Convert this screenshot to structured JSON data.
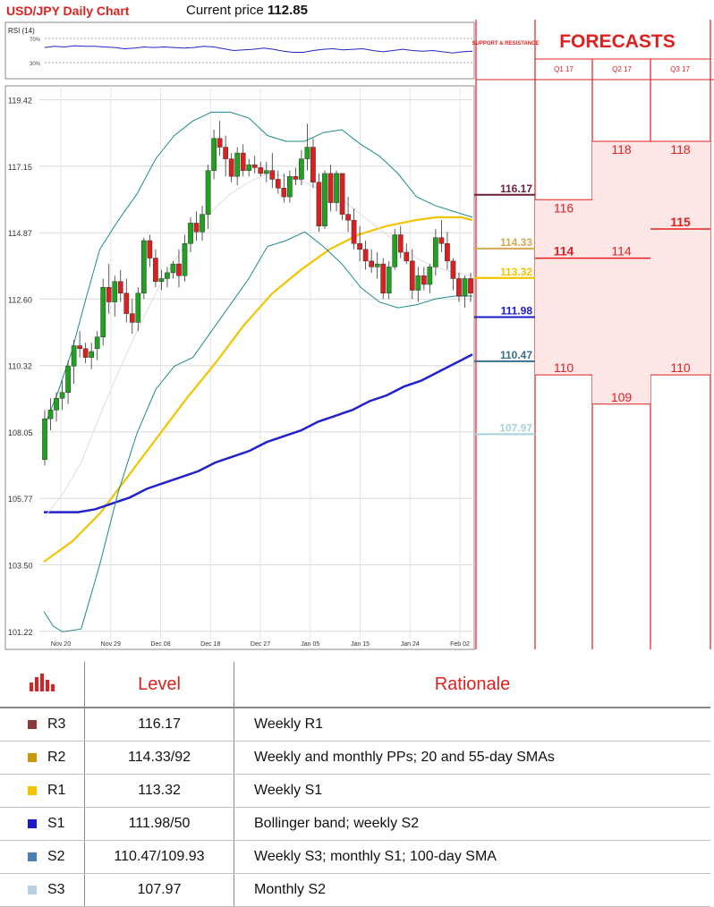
{
  "header": {
    "title": "USD/JPY Daily Chart",
    "price_label": "Current price",
    "price_value": "112.85"
  },
  "rsi_panel": {
    "label": "RSI (14)",
    "level_high": "70%",
    "level_low": "30%"
  },
  "sr_panel": {
    "title": "SUPPORT & RESISTANCE"
  },
  "forecast_panel": {
    "title": "FORECASTS",
    "columns": [
      "Q1 17",
      "Q2 17",
      "Q3 17"
    ]
  },
  "chart_data": {
    "type": "candlestick",
    "title": "USD/JPY Daily Chart",
    "ylim": [
      100.6,
      119.9
    ],
    "y_ticks": [
      "119.42",
      "117.15",
      "114.87",
      "112.60",
      "110.32",
      "108.05",
      "105.77",
      "103.50",
      "101.22"
    ],
    "x_ticks": [
      "Nov 20",
      "Nov 29",
      "Dec 08",
      "Dec 18",
      "Dec 27",
      "Jan 05",
      "Jan 15",
      "Jan 24",
      "Feb 02"
    ],
    "candles": [
      [
        107.1,
        108.8,
        106.9,
        108.5
      ],
      [
        108.5,
        109.2,
        108.1,
        108.8
      ],
      [
        108.8,
        109.4,
        108.4,
        109.2
      ],
      [
        109.2,
        109.8,
        108.8,
        109.4
      ],
      [
        109.4,
        110.5,
        109.0,
        110.3
      ],
      [
        110.3,
        111.2,
        109.7,
        111.0
      ],
      [
        111.0,
        111.5,
        110.6,
        110.9
      ],
      [
        110.9,
        111.1,
        110.4,
        110.6
      ],
      [
        110.6,
        111.1,
        110.2,
        110.8
      ],
      [
        110.9,
        111.5,
        110.5,
        111.3
      ],
      [
        111.3,
        113.3,
        111.0,
        113.0
      ],
      [
        113.0,
        113.8,
        112.1,
        112.5
      ],
      [
        112.5,
        113.4,
        112.0,
        113.2
      ],
      [
        113.2,
        113.6,
        112.5,
        112.8
      ],
      [
        112.8,
        113.3,
        111.8,
        112.1
      ],
      [
        112.1,
        112.6,
        111.4,
        111.8
      ],
      [
        111.8,
        113.0,
        111.5,
        112.8
      ],
      [
        112.8,
        114.7,
        112.6,
        114.6
      ],
      [
        114.6,
        114.8,
        113.7,
        114.0
      ],
      [
        114.0,
        114.3,
        113.0,
        113.2
      ],
      [
        113.2,
        113.6,
        112.9,
        113.3
      ],
      [
        113.3,
        113.7,
        113.0,
        113.5
      ],
      [
        113.5,
        113.9,
        113.3,
        113.8
      ],
      [
        113.8,
        114.3,
        113.0,
        113.4
      ],
      [
        113.4,
        114.8,
        113.2,
        114.5
      ],
      [
        114.5,
        115.4,
        114.2,
        115.2
      ],
      [
        115.2,
        115.6,
        114.6,
        114.9
      ],
      [
        114.9,
        115.8,
        114.6,
        115.5
      ],
      [
        115.5,
        117.2,
        115.0,
        117.0
      ],
      [
        117.0,
        118.4,
        116.7,
        118.1
      ],
      [
        118.1,
        118.7,
        117.5,
        117.8
      ],
      [
        117.8,
        118.2,
        116.8,
        117.4
      ],
      [
        117.4,
        117.6,
        116.6,
        116.8
      ],
      [
        116.8,
        117.8,
        116.5,
        117.6
      ],
      [
        117.6,
        117.9,
        116.8,
        117.0
      ],
      [
        117.0,
        117.4,
        116.8,
        117.2
      ],
      [
        117.2,
        117.5,
        116.9,
        117.1
      ],
      [
        117.1,
        117.3,
        116.8,
        116.9
      ],
      [
        116.9,
        117.3,
        116.6,
        117.0
      ],
      [
        117.0,
        117.6,
        116.4,
        116.7
      ],
      [
        116.7,
        117.0,
        116.2,
        116.4
      ],
      [
        116.4,
        116.9,
        115.9,
        116.1
      ],
      [
        116.1,
        117.0,
        115.9,
        116.8
      ],
      [
        116.8,
        117.1,
        116.5,
        116.7
      ],
      [
        116.7,
        117.7,
        116.5,
        117.4
      ],
      [
        117.4,
        118.6,
        117.0,
        117.8
      ],
      [
        117.8,
        118.1,
        116.4,
        116.6
      ],
      [
        116.6,
        116.9,
        114.9,
        115.1
      ],
      [
        115.1,
        117.0,
        115.0,
        116.9
      ],
      [
        116.9,
        117.2,
        115.6,
        115.9
      ],
      [
        115.9,
        117.0,
        115.6,
        116.9
      ],
      [
        116.9,
        116.9,
        115.3,
        115.5
      ],
      [
        115.5,
        116.1,
        114.9,
        115.3
      ],
      [
        115.3,
        115.7,
        114.3,
        114.5
      ],
      [
        114.5,
        115.1,
        113.9,
        114.3
      ],
      [
        114.3,
        114.6,
        113.6,
        113.9
      ],
      [
        113.9,
        114.3,
        113.5,
        113.7
      ],
      [
        113.7,
        114.2,
        113.3,
        113.8
      ],
      [
        113.8,
        114.0,
        112.6,
        112.8
      ],
      [
        112.8,
        113.9,
        112.6,
        113.7
      ],
      [
        113.7,
        115.0,
        113.6,
        114.8
      ],
      [
        114.8,
        115.1,
        114.0,
        114.2
      ],
      [
        114.2,
        114.5,
        113.8,
        113.9
      ],
      [
        113.9,
        114.3,
        112.6,
        112.9
      ],
      [
        112.9,
        113.7,
        112.5,
        113.4
      ],
      [
        113.4,
        113.7,
        112.9,
        113.1
      ],
      [
        113.1,
        113.8,
        112.8,
        113.7
      ],
      [
        113.7,
        115.0,
        113.4,
        114.7
      ],
      [
        114.7,
        115.3,
        114.2,
        114.5
      ],
      [
        114.5,
        114.9,
        113.6,
        113.9
      ],
      [
        113.9,
        114.0,
        112.9,
        113.3
      ],
      [
        113.3,
        113.5,
        112.5,
        112.7
      ],
      [
        112.7,
        113.4,
        112.3,
        113.3
      ],
      [
        113.3,
        113.5,
        112.5,
        112.8
      ]
    ],
    "series": [
      {
        "name": "",
        "color": "#f2c400",
        "values": [
          [
            0,
            103.6
          ],
          [
            8,
            104.3
          ],
          [
            16,
            105.3
          ],
          [
            24,
            106.6
          ],
          [
            32,
            107.9
          ],
          [
            40,
            109.2
          ],
          [
            48,
            110.4
          ],
          [
            56,
            111.7
          ],
          [
            64,
            112.8
          ],
          [
            72,
            113.6
          ],
          [
            80,
            114.3
          ],
          [
            88,
            114.8
          ],
          [
            96,
            115.1
          ],
          [
            104,
            115.3
          ],
          [
            110,
            115.4
          ],
          [
            117,
            115.4
          ],
          [
            120,
            115.3
          ]
        ]
      },
      {
        "name": "",
        "color": "#2222cc",
        "values": [
          [
            0,
            105.3
          ],
          [
            15,
            105.3
          ],
          [
            30,
            105.3
          ],
          [
            45,
            105.4
          ],
          [
            60,
            105.6
          ],
          [
            75,
            105.8
          ],
          [
            90,
            106.1
          ],
          [
            105,
            106.3
          ],
          [
            120,
            106.5
          ],
          [
            135,
            106.7
          ],
          [
            150,
            107.0
          ],
          [
            165,
            107.2
          ],
          [
            180,
            107.4
          ],
          [
            195,
            107.7
          ],
          [
            210,
            107.9
          ],
          [
            225,
            108.1
          ],
          [
            240,
            108.4
          ],
          [
            255,
            108.6
          ],
          [
            270,
            108.8
          ],
          [
            285,
            109.1
          ],
          [
            300,
            109.3
          ],
          [
            315,
            109.6
          ],
          [
            330,
            109.8
          ],
          [
            345,
            110.1
          ],
          [
            360,
            110.4
          ],
          [
            375,
            110.7
          ]
        ]
      },
      {
        "name": "",
        "color": "#1f8a8a",
        "values": [
          [
            0,
            101.9
          ],
          [
            4,
            101.4
          ],
          [
            8,
            101.2
          ],
          [
            16,
            101.3
          ],
          [
            24,
            103.5
          ],
          [
            32,
            106.0
          ],
          [
            40,
            108.0
          ],
          [
            48,
            109.5
          ],
          [
            56,
            110.3
          ],
          [
            64,
            110.6
          ],
          [
            72,
            111.5
          ],
          [
            80,
            112.4
          ],
          [
            88,
            113.3
          ],
          [
            96,
            114.4
          ],
          [
            104,
            114.6
          ],
          [
            112,
            114.9
          ],
          [
            120,
            114.4
          ],
          [
            128,
            113.8
          ],
          [
            136,
            113.0
          ],
          [
            144,
            112.5
          ],
          [
            152,
            112.3
          ],
          [
            160,
            112.4
          ],
          [
            168,
            112.6
          ],
          [
            176,
            112.7
          ],
          [
            184,
            112.7
          ]
        ]
      },
      {
        "name": "",
        "color": "#1f8a8a",
        "values": [
          [
            0,
            108.2
          ],
          [
            6,
            109.4
          ],
          [
            12,
            110.8
          ],
          [
            18,
            112.6
          ],
          [
            24,
            114.3
          ],
          [
            32,
            115.3
          ],
          [
            40,
            116.2
          ],
          [
            48,
            117.4
          ],
          [
            56,
            118.2
          ],
          [
            64,
            118.7
          ],
          [
            72,
            119.0
          ],
          [
            80,
            119.0
          ],
          [
            88,
            118.8
          ],
          [
            96,
            118.2
          ],
          [
            104,
            118.0
          ],
          [
            112,
            118.0
          ],
          [
            120,
            118.3
          ],
          [
            128,
            118.4
          ],
          [
            136,
            117.9
          ],
          [
            144,
            117.5
          ],
          [
            152,
            116.9
          ],
          [
            160,
            116.1
          ],
          [
            168,
            115.8
          ],
          [
            176,
            115.6
          ],
          [
            184,
            115.4
          ]
        ]
      },
      {
        "name": "",
        "color": "#dddddd",
        "values": [
          [
            0,
            105.1
          ],
          [
            8,
            105.9
          ],
          [
            16,
            107.0
          ],
          [
            24,
            108.6
          ],
          [
            32,
            110.1
          ],
          [
            40,
            111.5
          ],
          [
            48,
            112.8
          ],
          [
            56,
            113.9
          ],
          [
            64,
            114.8
          ],
          [
            72,
            115.6
          ],
          [
            80,
            116.2
          ],
          [
            88,
            116.6
          ],
          [
            96,
            116.9
          ],
          [
            104,
            116.8
          ],
          [
            112,
            116.6
          ],
          [
            120,
            116.3
          ],
          [
            128,
            116.0
          ],
          [
            136,
            115.5
          ],
          [
            144,
            115.0
          ],
          [
            152,
            114.5
          ],
          [
            160,
            114.0
          ],
          [
            168,
            113.7
          ],
          [
            176,
            113.5
          ],
          [
            184,
            113.4
          ]
        ]
      }
    ],
    "rsi": [
      55,
      57,
      56,
      58,
      57,
      57,
      56,
      55,
      53,
      54,
      56,
      55,
      56,
      55,
      54,
      55,
      57,
      56,
      53,
      50,
      51,
      52,
      54,
      52,
      49,
      47,
      47,
      50,
      52,
      53,
      51,
      52,
      53,
      50,
      48,
      50,
      52,
      50,
      49,
      50,
      48,
      46,
      48,
      49
    ]
  },
  "sr_levels": [
    {
      "label": "116.17",
      "value": 116.17,
      "color": "#6b1f3a"
    },
    {
      "label": "114.33",
      "value": 114.33,
      "color": "#d4a84f"
    },
    {
      "label": "113.32",
      "value": 113.32,
      "color": "#f2c400"
    },
    {
      "label": "111.98",
      "value": 111.98,
      "color": "#1a1acc"
    },
    {
      "label": "110.47",
      "value": 110.47,
      "color": "#3a6e8a"
    },
    {
      "label": "107.97",
      "value": 107.97,
      "color": "#a8d0d8"
    }
  ],
  "forecasts": [
    {
      "col": 0,
      "high": {
        "label": "116",
        "value": 116.0
      },
      "mid": {
        "label": "114",
        "value": 114.0
      },
      "low": {
        "label": "110",
        "value": 110.0
      }
    },
    {
      "col": 1,
      "high": {
        "label": "118",
        "value": 118.0
      },
      "mid": {
        "label": "114",
        "value": 114.0
      },
      "low": {
        "label": "109",
        "value": 109.0
      }
    },
    {
      "col": 2,
      "high": {
        "label": "118",
        "value": 118.0
      },
      "mid": {
        "label": "115",
        "value": 115.0
      },
      "low": {
        "label": "110",
        "value": 110.0
      }
    }
  ],
  "levels_table": {
    "header_level": "Level",
    "header_rationale": "Rationale",
    "rows": [
      {
        "tag": "R3",
        "color": "#8b3a3a",
        "level": "116.17",
        "rationale": "Weekly R1"
      },
      {
        "tag": "R2",
        "color": "#c9960c",
        "level": "114.33/92",
        "rationale": "Weekly and monthly PPs; 20 and 55-day SMAs"
      },
      {
        "tag": "R1",
        "color": "#f2c400",
        "level": "113.32",
        "rationale": "Weekly S1"
      },
      {
        "tag": "S1",
        "color": "#1a1acc",
        "level": "111.98/50",
        "rationale": "Bollinger band; weekly S2"
      },
      {
        "tag": "S2",
        "color": "#4a7fb5",
        "level": "110.47/109.93",
        "rationale": "Weekly S3; monthly S1; 100-day SMA"
      },
      {
        "tag": "S3",
        "color": "#b8cfe4",
        "level": "107.97",
        "rationale": "Monthly S2"
      }
    ]
  }
}
